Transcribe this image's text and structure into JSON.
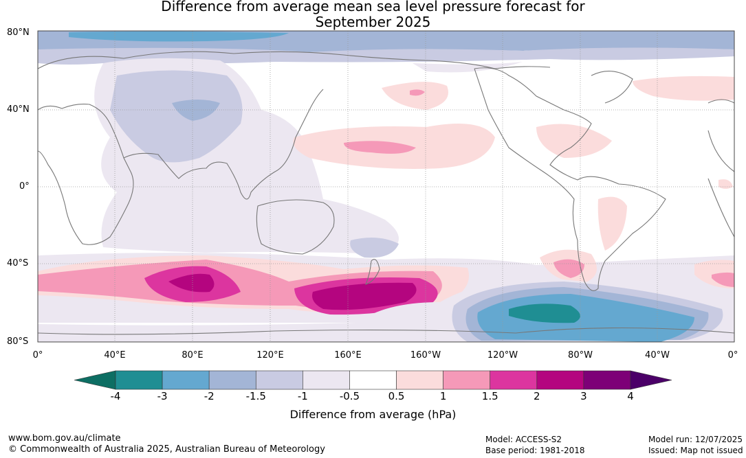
{
  "title_line1": "Difference from average mean sea level pressure forecast for",
  "title_line2": "September 2025",
  "lat_labels": [
    "80°N",
    "40°N",
    "0°",
    "40°S",
    "80°S"
  ],
  "lon_labels": [
    "0°",
    "40°E",
    "80°E",
    "120°E",
    "160°E",
    "160°W",
    "120°W",
    "80°W",
    "40°W",
    "0°"
  ],
  "colorbar": {
    "ticks": [
      "-4",
      "-3",
      "-2",
      "-1.5",
      "-1",
      "-0.5",
      "0.5",
      "1",
      "1.5",
      "2",
      "3",
      "4"
    ],
    "colors": [
      "#0d6e63",
      "#1f8e93",
      "#64a8d0",
      "#a3b5d6",
      "#c9cbe2",
      "#ece7f1",
      "#ffffff",
      "#fbdcdc",
      "#f599b8",
      "#dc359f",
      "#b4057f",
      "#7d0077",
      "#4b0068"
    ],
    "unit_label": "Difference from average (hPa)"
  },
  "footer": {
    "website": "www.bom.gov.au/climate",
    "copyright": "© Commonwealth of Australia 2025, Australian Bureau of Meteorology",
    "model": "Model: ACCESS-S2",
    "base_period": "Base period: 1981-2018",
    "model_run": "Model run: 12/07/2025",
    "issued": "Issued: Map not issued"
  }
}
